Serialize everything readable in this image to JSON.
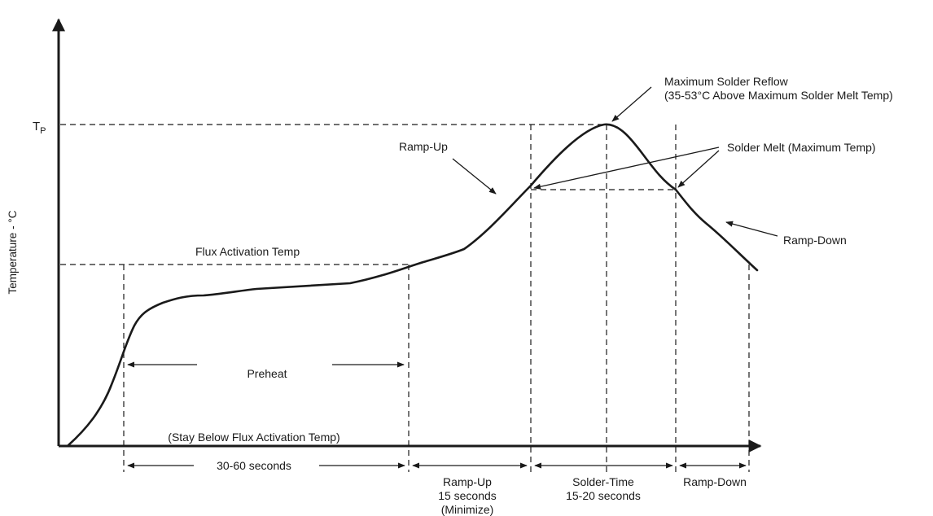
{
  "axes": {
    "y_label": "Temperature - °C",
    "tp_main": "T",
    "tp_sub": "P"
  },
  "annotations": {
    "max_reflow_line1": "Maximum Solder Reflow",
    "max_reflow_line2": "(35-53°C Above Maximum Solder Melt Temp)",
    "solder_melt": "Solder Melt (Maximum Temp)",
    "ramp_up_curve": "Ramp-Up",
    "ramp_down_curve": "Ramp-Down",
    "flux_activation": "Flux Activation Temp",
    "preheat": "Preheat",
    "stay_below": "(Stay Below Flux Activation Temp)"
  },
  "timeline": {
    "preheat_time": "30-60 seconds",
    "ramp_up_line1": "Ramp-Up",
    "ramp_up_line2": "15 seconds",
    "ramp_up_line3": "(Minimize)",
    "solder_time_line1": "Solder-Time",
    "solder_time_line2": "15-20 seconds",
    "ramp_down": "Ramp-Down"
  }
}
